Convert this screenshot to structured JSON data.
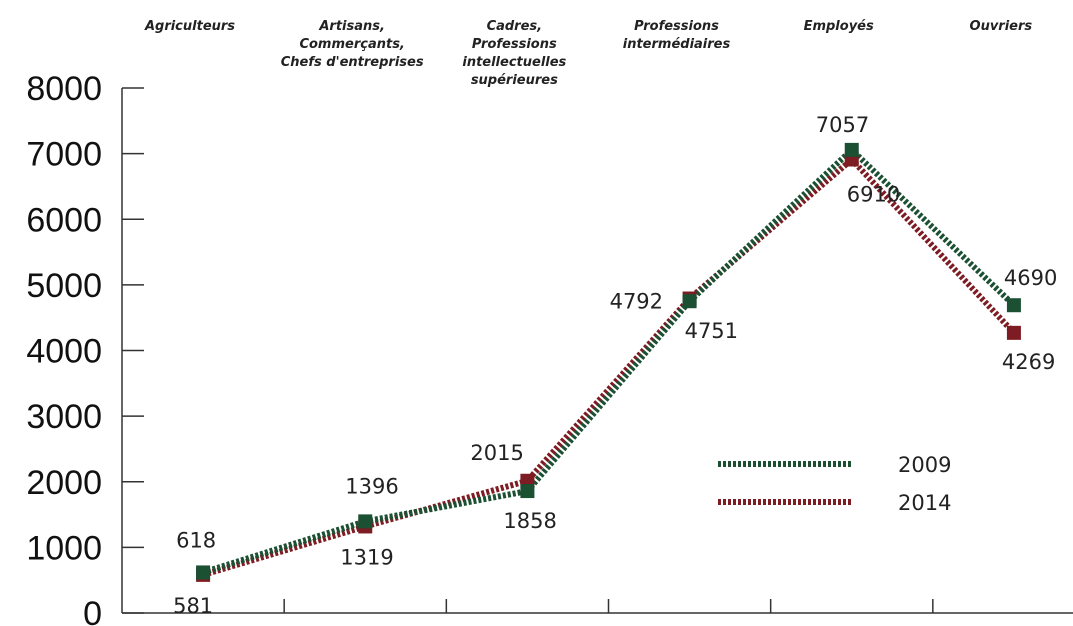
{
  "chart_data": {
    "type": "line",
    "categories": [
      [
        "Agriculteurs"
      ],
      [
        "Artisans,",
        "Commerçants,",
        "Chefs d'entreprises"
      ],
      [
        "Cadres,",
        "Professions",
        "intellectuelles",
        "supérieures"
      ],
      [
        "Professions",
        "intermédiaires"
      ],
      [
        "Employés"
      ],
      [
        "Ouvriers"
      ]
    ],
    "series": [
      {
        "name": "2009",
        "color": "#1b5032",
        "values": [
          618,
          1396,
          1858,
          4751,
          7057,
          4690
        ],
        "labels": [
          "618",
          "1396",
          "1858",
          "4751",
          "7057",
          "4690"
        ]
      },
      {
        "name": "2014",
        "color": "#7d1c22",
        "values": [
          581,
          1319,
          2015,
          4792,
          6910,
          4269
        ],
        "labels": [
          "581",
          "1319",
          "2015",
          "4792",
          "6910",
          "4269"
        ]
      }
    ],
    "yticks": [
      "0",
      "1000",
      "2000",
      "3000",
      "4000",
      "5000",
      "6000",
      "7000",
      "8000"
    ],
    "ylim": [
      0,
      8000
    ],
    "grid": false,
    "legend_position": "right-center",
    "title": "",
    "xlabel": "",
    "ylabel": ""
  }
}
